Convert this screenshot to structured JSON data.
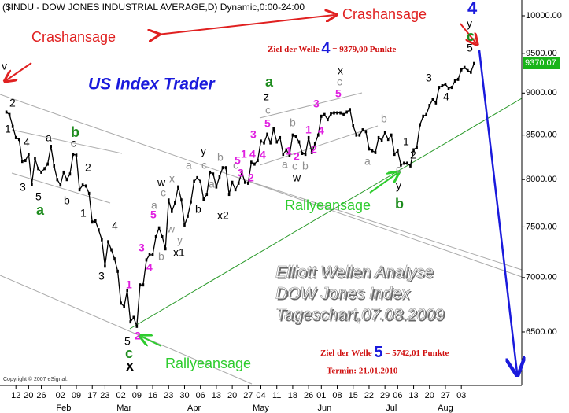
{
  "chart_data": {
    "type": "line",
    "title": "($INDU - DOW JONES INDUSTRIAL AVERAGE,D) Dynamic,0:00-24:00",
    "log_scale": true,
    "ylim": [
      6056,
      10162
    ],
    "xlim": [
      -2,
      162
    ],
    "yticks": [
      {
        "value": 6500,
        "label": "6500.00"
      },
      {
        "value": 7000,
        "label": "7000.00"
      },
      {
        "value": 7500,
        "label": "7500.00"
      },
      {
        "value": 8000,
        "label": "8000.00"
      },
      {
        "value": 8500,
        "label": "8500.00"
      },
      {
        "value": 9000,
        "label": "9000.00"
      },
      {
        "value": 9500,
        "label": "9500.00"
      },
      {
        "value": 10000,
        "label": "10000.00"
      }
    ],
    "xticks": [
      {
        "value": 3,
        "label": "12"
      },
      {
        "value": 7,
        "label": "20"
      },
      {
        "value": 11,
        "label": "26"
      },
      {
        "value": 17,
        "label": "02"
      },
      {
        "value": 22,
        "label": "09"
      },
      {
        "value": 27,
        "label": "17"
      },
      {
        "value": 31,
        "label": "23"
      },
      {
        "value": 36,
        "label": "02"
      },
      {
        "value": 41,
        "label": "09"
      },
      {
        "value": 46,
        "label": "16"
      },
      {
        "value": 51,
        "label": "23"
      },
      {
        "value": 56,
        "label": "30"
      },
      {
        "value": 61,
        "label": "06"
      },
      {
        "value": 66,
        "label": "13"
      },
      {
        "value": 71,
        "label": "20"
      },
      {
        "value": 76,
        "label": "27"
      },
      {
        "value": 80,
        "label": "04"
      },
      {
        "value": 85,
        "label": "11"
      },
      {
        "value": 90,
        "label": "18"
      },
      {
        "value": 95,
        "label": "26"
      },
      {
        "value": 99,
        "label": "01"
      },
      {
        "value": 104,
        "label": "08"
      },
      {
        "value": 109,
        "label": "15"
      },
      {
        "value": 114,
        "label": "22"
      },
      {
        "value": 119,
        "label": "29"
      },
      {
        "value": 123,
        "label": "06"
      },
      {
        "value": 128,
        "label": "13"
      },
      {
        "value": 133,
        "label": "20"
      },
      {
        "value": 138,
        "label": "27"
      },
      {
        "value": 143,
        "label": "03"
      }
    ],
    "month_labels": [
      {
        "value": 18,
        "label": "Feb"
      },
      {
        "value": 37,
        "label": "Mar"
      },
      {
        "value": 59,
        "label": "Apr"
      },
      {
        "value": 80,
        "label": "May"
      },
      {
        "value": 100,
        "label": "Jun"
      },
      {
        "value": 121,
        "label": "Jul"
      },
      {
        "value": 138,
        "label": "Aug"
      }
    ],
    "series": [
      {
        "name": "$INDU",
        "color": "#000000",
        "values": [
          8770,
          8740,
          8600,
          8470,
          8450,
          8200,
          8210,
          8280,
          7950,
          8230,
          8120,
          8080,
          8120,
          8170,
          8370,
          8150,
          8000,
          7940,
          8080,
          8000,
          8060,
          8280,
          8270,
          7890,
          7940,
          7930,
          7850,
          7550,
          7560,
          7470,
          7370,
          7110,
          7350,
          7270,
          7180,
          7060,
          6760,
          6730,
          6880,
          6590,
          6630,
          6550,
          6930,
          6930,
          7170,
          7220,
          7220,
          7400,
          7490,
          7400,
          7280,
          7780,
          7660,
          7750,
          7920,
          7780,
          7520,
          7610,
          7760,
          7980,
          8020,
          7980,
          7790,
          7840,
          8080,
          8060,
          7920,
          8030,
          8130,
          8130,
          7840,
          7970,
          7890,
          7960,
          8080,
          7970,
          7960,
          8190,
          8170,
          8210,
          8430,
          8410,
          8510,
          8410,
          8570,
          8420,
          8470,
          8280,
          8330,
          8270,
          8500,
          8480,
          8420,
          8290,
          8280,
          8470,
          8300,
          8400,
          8500,
          8720,
          8740,
          8680,
          8750,
          8760,
          8760,
          8760,
          8740,
          8770,
          8800,
          8610,
          8500,
          8500,
          8560,
          8540,
          8340,
          8320,
          8300,
          8470,
          8440,
          8530,
          8450,
          8500,
          8280,
          8320,
          8160,
          8180,
          8180,
          8150,
          8330,
          8360,
          8620,
          8720,
          8740,
          8850,
          8920,
          8880,
          9070,
          9090,
          9110,
          9060,
          9070,
          9150,
          9170,
          9290,
          9320,
          9280,
          9260,
          9370.07
        ]
      }
    ],
    "last_price_label": "9370.07",
    "wave_labels": [
      "v",
      "2",
      "1",
      "4",
      "a",
      "b",
      "c",
      "2",
      "3",
      "5",
      "a",
      "b",
      "1",
      "4",
      "3",
      "1",
      "3",
      "4",
      "5",
      "a",
      "b",
      "w",
      "x",
      "y",
      "w",
      "c",
      "x1",
      "y",
      "c",
      "a",
      "b",
      "b",
      "a",
      "x2",
      "c",
      "5",
      "3",
      "1",
      "2",
      "4",
      "z",
      "a",
      "c",
      "5",
      "3",
      "4",
      "b",
      "1",
      "2",
      "a",
      "c",
      "b",
      "w",
      "3",
      "4",
      "1",
      "2",
      "5",
      "c",
      "x",
      "b",
      "a",
      "c",
      "y",
      "b",
      "1",
      "2",
      "3",
      "4",
      "5",
      "c",
      "y",
      "4",
      "x",
      "c",
      "5",
      "2"
    ],
    "crash_1": "Crashansage",
    "crash_2": "Crashansage",
    "brand": "US Index Trader",
    "rally_1": "Rallyeansage",
    "rally_2": "Rallyeansage",
    "target_4": {
      "prefix": "Ziel der Welle",
      "wave": "4",
      "suffix": "= 9379,00 Punkte"
    },
    "target_5": {
      "prefix": "Ziel der Welle",
      "wave": "5",
      "suffix": "= 5742,01 Punkte"
    },
    "deadline": "Termin: 21.01.2010",
    "analysis": [
      "Elliott Wellen Analyse",
      "DOW Jones Index",
      "Tageschart,07.08.2009"
    ],
    "copyright": "Copyright © 2007 eSignal."
  }
}
